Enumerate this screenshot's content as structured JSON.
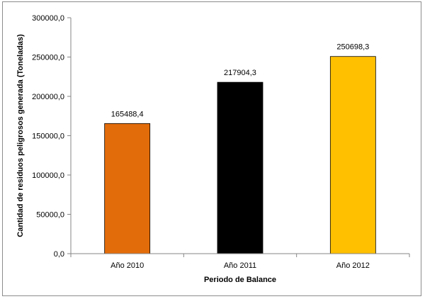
{
  "chart_data": {
    "type": "bar",
    "categories": [
      "Año 2010",
      "Año 2011",
      "Año 2012"
    ],
    "values": [
      165488.4,
      217904.3,
      250698.3
    ],
    "data_labels": [
      "165488,4",
      "217904,3",
      "250698,3"
    ],
    "colors": [
      "#E36C0A",
      "#000000",
      "#FFC000"
    ],
    "title": "",
    "xlabel": "Periodo de Balance",
    "ylabel": "Cantidad de residuos peligrosos generada (Toneladas)",
    "ylim": [
      0,
      300000
    ],
    "y_ticks": [
      0,
      50000,
      100000,
      150000,
      200000,
      250000,
      300000
    ],
    "y_tick_labels": [
      "0,0",
      "50000,0",
      "100000,0",
      "150000,0",
      "200000,0",
      "250000,0",
      "300000,0"
    ],
    "grid": false,
    "legend": "none"
  }
}
